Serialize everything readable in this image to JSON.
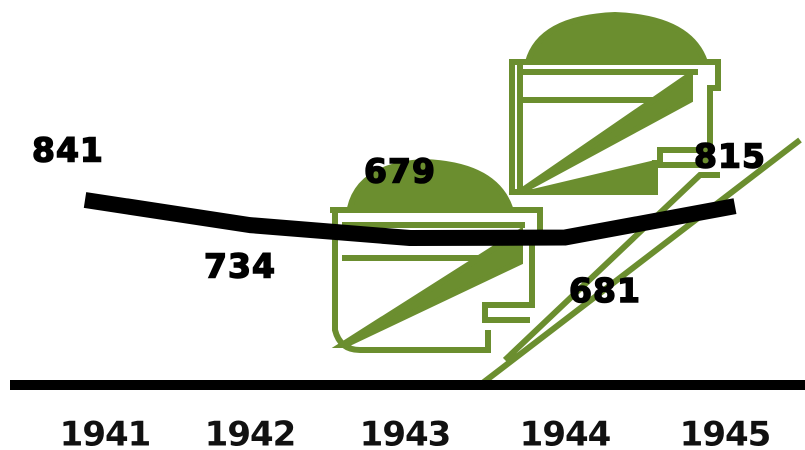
{
  "chart_data": {
    "type": "line",
    "categories": [
      "1941",
      "1942",
      "1943",
      "1944",
      "1945"
    ],
    "values": [
      841,
      734,
      679,
      681,
      815
    ],
    "color": "#000000",
    "decoration_color": "#6b8e2f"
  }
}
